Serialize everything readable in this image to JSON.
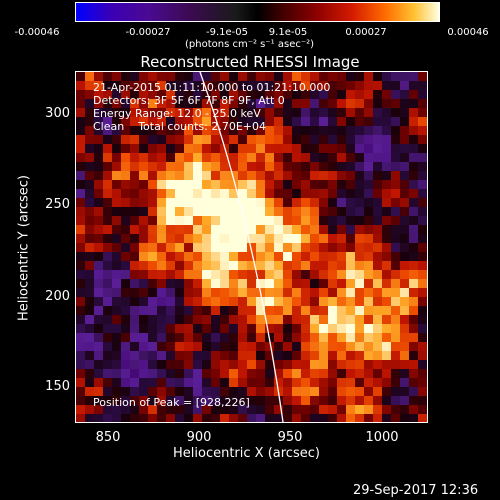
{
  "colorbar": {
    "ticks": [
      "-0.00046",
      "-0.00027",
      "-9.1e-05",
      "9.1e-05",
      "0.00027",
      "0.00046"
    ],
    "unit_label": "(photons cm⁻² s⁻¹ asec⁻²)"
  },
  "plot": {
    "title": "Reconstructed RHESSI Image",
    "annotations": {
      "time_range": "21-Apr-2015 01:11:10.000 to 01:21:10.000",
      "detectors": "Detectors: 3F 5F 6F 7F 8F 9F, Att 0",
      "energy": "Energy Range: 12.0 - 25.0 keV",
      "clean": "Clean    Total counts: 2.70E+04",
      "peak": "Position of Peak = [928,226]"
    },
    "x_axis": {
      "label": "Heliocentric X (arcsec)",
      "ticks": [
        "850",
        "900",
        "950",
        "1000"
      ]
    },
    "y_axis": {
      "label": "Heliocentric Y (arcsec)",
      "ticks": [
        "300",
        "250",
        "200",
        "150"
      ]
    }
  },
  "footer": {
    "date": "29-Sep-2017 12:36"
  },
  "colors": {
    "background": "#000000",
    "foreground": "#ffffff",
    "limb_line": "#ffffff"
  }
}
